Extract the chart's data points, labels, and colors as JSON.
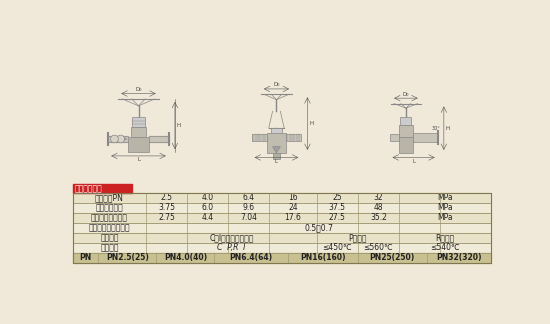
{
  "bg_color": "#f0e8d8",
  "title_box_color": "#cc2222",
  "title_text": "产品性能规范",
  "title_text_color": "#ffffff",
  "table_header_bg": "#d6cfa8",
  "table_row_bg1": "#e8e2c8",
  "table_row_bg2": "#f0ead8",
  "table_border_color": "#a09870",
  "table_text_color": "#222222",
  "bottom_header_bg": "#c8c090",
  "rows": [
    [
      "公称压力PN",
      "2.5",
      "4.0",
      "6.4",
      "16",
      "25",
      "32",
      "MPa"
    ],
    [
      "壳体试验压力",
      "3.75",
      "6.0",
      "9.6",
      "24",
      "37.5",
      "48",
      "MPa"
    ],
    [
      "高压密封试验压力",
      "2.75",
      "4.4",
      "7.04",
      "17.6",
      "27.5",
      "35.2",
      "MPa"
    ],
    [
      "低压气密封试验压力",
      "",
      "",
      "",
      "0.5～0.7",
      "",
      "",
      ""
    ],
    [
      "适用介质",
      "C、I水、油品、蒸汽",
      "",
      "",
      "P硝酸类",
      "",
      "R醋酸类",
      ""
    ],
    [
      "适用温度",
      "",
      "C  P,R  I",
      "",
      "≤450℃",
      "≤560℃",
      "≤540℃",
      ""
    ]
  ],
  "bottom_row": [
    "PN",
    "PN2.5(25)",
    "PN4.0(40)",
    "PN6.4(64)",
    "PN16(160)",
    "PN25(250)",
    "PN32(320)"
  ]
}
